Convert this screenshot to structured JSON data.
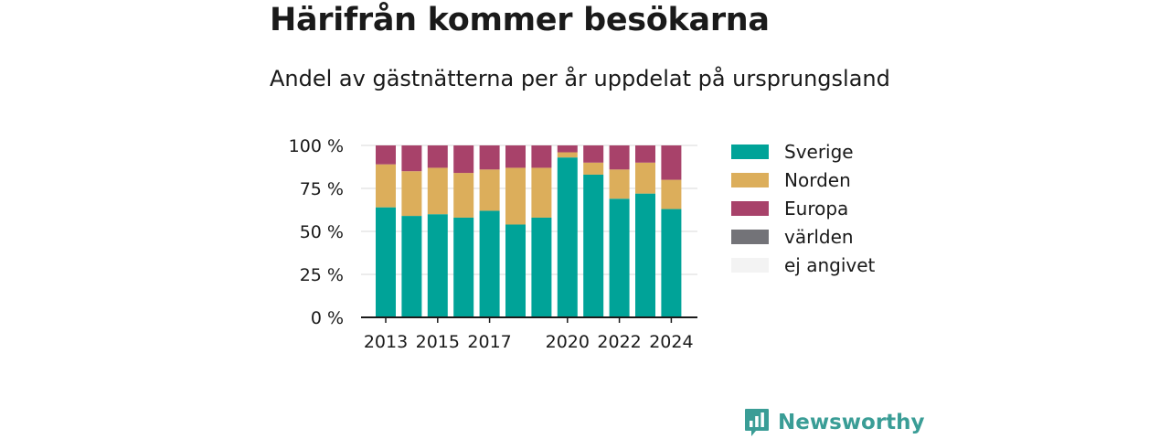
{
  "title": "Härifrån kommer besökarna",
  "subtitle": "Andel av gästnätterna per år uppdelat på ursprungsland",
  "brand": {
    "name": "Newsworthy"
  },
  "chart_data": {
    "type": "bar",
    "stacked": true,
    "categories": [
      "2013",
      "2014",
      "2015",
      "2016",
      "2017",
      "2018",
      "2019",
      "2020",
      "2021",
      "2022",
      "2023",
      "2024"
    ],
    "x_tick_labels": [
      "2013",
      "2015",
      "2017",
      "2020",
      "2022",
      "2024"
    ],
    "y_ticks": [
      0,
      25,
      50,
      75,
      100
    ],
    "y_tick_suffix": " %",
    "ylim": [
      0,
      100
    ],
    "grid": true,
    "legend_position": "right",
    "series": [
      {
        "name": "Sverige",
        "color": "#00a398",
        "values": [
          64,
          59,
          60,
          58,
          62,
          54,
          58,
          93,
          83,
          69,
          72,
          63
        ]
      },
      {
        "name": "Norden",
        "color": "#dcae5b",
        "values": [
          25,
          26,
          27,
          26,
          24,
          33,
          29,
          3,
          7,
          17,
          18,
          17
        ]
      },
      {
        "name": "Europa",
        "color": "#a8426a",
        "values": [
          11,
          15,
          13,
          16,
          14,
          13,
          13,
          4,
          10,
          14,
          10,
          20
        ]
      },
      {
        "name": "världen",
        "color": "#737378",
        "values": [
          0,
          0,
          0,
          0,
          0,
          0,
          0,
          0,
          0,
          0,
          0,
          0
        ]
      },
      {
        "name": "ej angivet",
        "color": "#f3f3f3",
        "values": [
          0,
          0,
          0,
          0,
          0,
          0,
          0,
          0,
          0,
          0,
          0,
          0
        ]
      }
    ]
  }
}
